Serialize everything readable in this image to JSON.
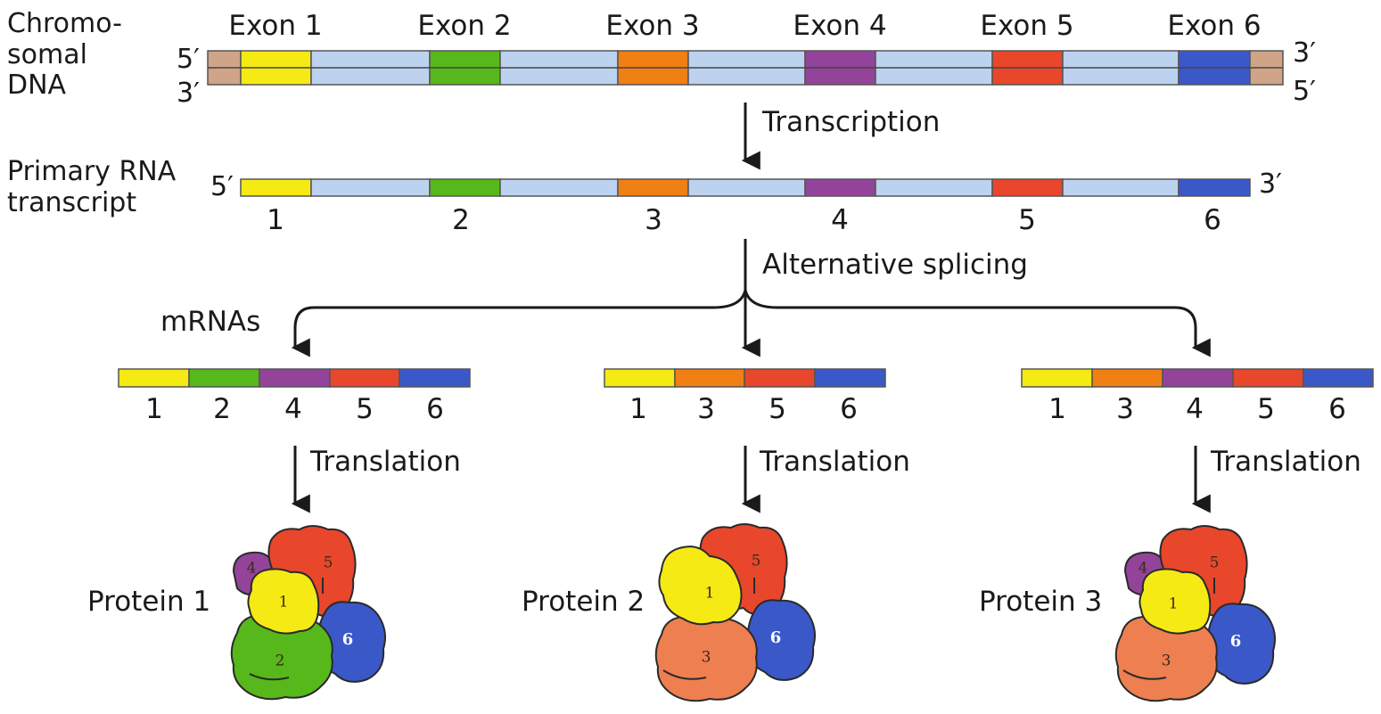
{
  "colors": {
    "exon1": "#f5ea14",
    "exon2": "#56b81a",
    "exon3": "#f07f14",
    "exon4": "#93449a",
    "exon5": "#e8472b",
    "exon6": "#3a58c8",
    "exon3_protein": "#ee7f50",
    "intron": "#bdd2ef",
    "flank": "#cfa488",
    "outline": "#2a2a2a"
  },
  "dna": {
    "label": "Chromo-\nsomal\nDNA",
    "top_left": "5′",
    "bottom_left": "3′",
    "top_right": "3′",
    "bottom_right": "5′",
    "exon_labels": [
      "Exon 1",
      "Exon 2",
      "Exon 3",
      "Exon 4",
      "Exon 5",
      "Exon 6"
    ]
  },
  "transcription": {
    "label": "Transcription"
  },
  "primary_rna": {
    "label": "Primary RNA\ntranscript",
    "left_end": "5′",
    "right_end": "3′",
    "exon_numbers": [
      "1",
      "2",
      "3",
      "4",
      "5",
      "6"
    ]
  },
  "splicing": {
    "label": "Alternative splicing",
    "mrnas_label": "mRNAs"
  },
  "mrnas": [
    {
      "exons": [
        "1",
        "2",
        "4",
        "5",
        "6"
      ],
      "translation_label": "Translation",
      "protein_label": "Protein 1",
      "protein_parts": [
        "4",
        "5",
        "1",
        "6",
        "2"
      ]
    },
    {
      "exons": [
        "1",
        "3",
        "5",
        "6"
      ],
      "translation_label": "Translation",
      "protein_label": "Protein 2",
      "protein_parts": [
        "5",
        "1",
        "6",
        "3"
      ]
    },
    {
      "exons": [
        "1",
        "3",
        "4",
        "5",
        "6"
      ],
      "translation_label": "Translation",
      "protein_label": "Protein 3",
      "protein_parts": [
        "4",
        "5",
        "1",
        "6",
        "3"
      ]
    }
  ]
}
